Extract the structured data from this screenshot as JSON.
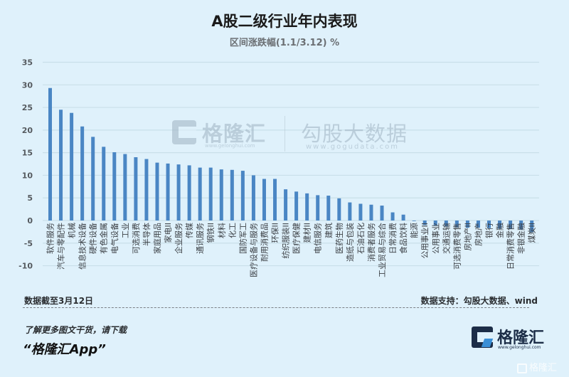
{
  "header": {
    "title": "A股二级行业年内表现",
    "subtitle": "区间涨跌幅(1.1/3.12) %"
  },
  "watermark": {
    "brand1": "格隆汇",
    "brand1_url": "www.gelonghui.com",
    "brand2": "勾股大数据",
    "brand2_url": "www.gogudata.com"
  },
  "footer": {
    "data_date": "数据截至3月12日",
    "data_source": "数据支持：勾股大数据、wind",
    "promo_line1": "了解更多图文干货，请下载",
    "promo_line2": "“格隆汇App”",
    "brand_name": "格隆汇",
    "brand_url": "www.gelonghui.com",
    "corner_watermark": "格隆汇"
  },
  "colors": {
    "background": "#dff1fb",
    "bar": "#4a86c4",
    "grid": "#c9dfe9",
    "brand_dark": "#1c2d47",
    "brand_accent": "#3a8fd6"
  },
  "chart_data": {
    "type": "bar",
    "title": "A股二级行业年内表现",
    "subtitle": "区间涨跌幅(1.1/3.12) %",
    "xlabel": "",
    "ylabel": "区间涨跌幅 %",
    "ylim": [
      -10,
      35
    ],
    "yticks": [
      35,
      30,
      25,
      20,
      15,
      10,
      5,
      0,
      -5,
      -10
    ],
    "grid": true,
    "legend": null,
    "categories": [
      "软件服务",
      "汽车与零配件",
      "机械",
      "信息技术设备",
      "硬件设备",
      "有色金属",
      "电气设备",
      "工业",
      "可选消费",
      "半导体",
      "家庭用品",
      "家电II",
      "企业服务",
      "传媒",
      "通讯服务",
      "钢铁II",
      "材料",
      "化工",
      "国防军工",
      "医疗设备与服务",
      "耐用消费品",
      "环保II",
      "纺织服装II",
      "医疗保健",
      "建材II",
      "电信服务",
      "建筑",
      "医药生物",
      "造纸与包装",
      "石油石化",
      "消费者服务",
      "工业贸易与综合",
      "日常消费",
      "食品饮料",
      "能源",
      "公用事业II",
      "公用事业",
      "交通运输",
      "可选消费零售",
      "房地产II",
      "房地产",
      "银行",
      "金融",
      "日常消费零售",
      "非银金融",
      "煤炭II"
    ],
    "values": [
      29.3,
      24.5,
      23.8,
      20.8,
      18.5,
      16.3,
      15.1,
      14.7,
      14.0,
      13.6,
      12.8,
      12.6,
      12.4,
      12.2,
      11.7,
      11.7,
      11.3,
      11.2,
      11.0,
      10.0,
      9.2,
      9.2,
      6.9,
      6.4,
      6.0,
      5.6,
      5.5,
      4.9,
      4.0,
      3.7,
      3.5,
      3.3,
      1.8,
      1.3,
      -0.1,
      -1.0,
      -1.1,
      -1.3,
      -1.5,
      -1.6,
      -1.6,
      -1.7,
      -1.8,
      -1.9,
      -2.0,
      -2.6
    ]
  }
}
